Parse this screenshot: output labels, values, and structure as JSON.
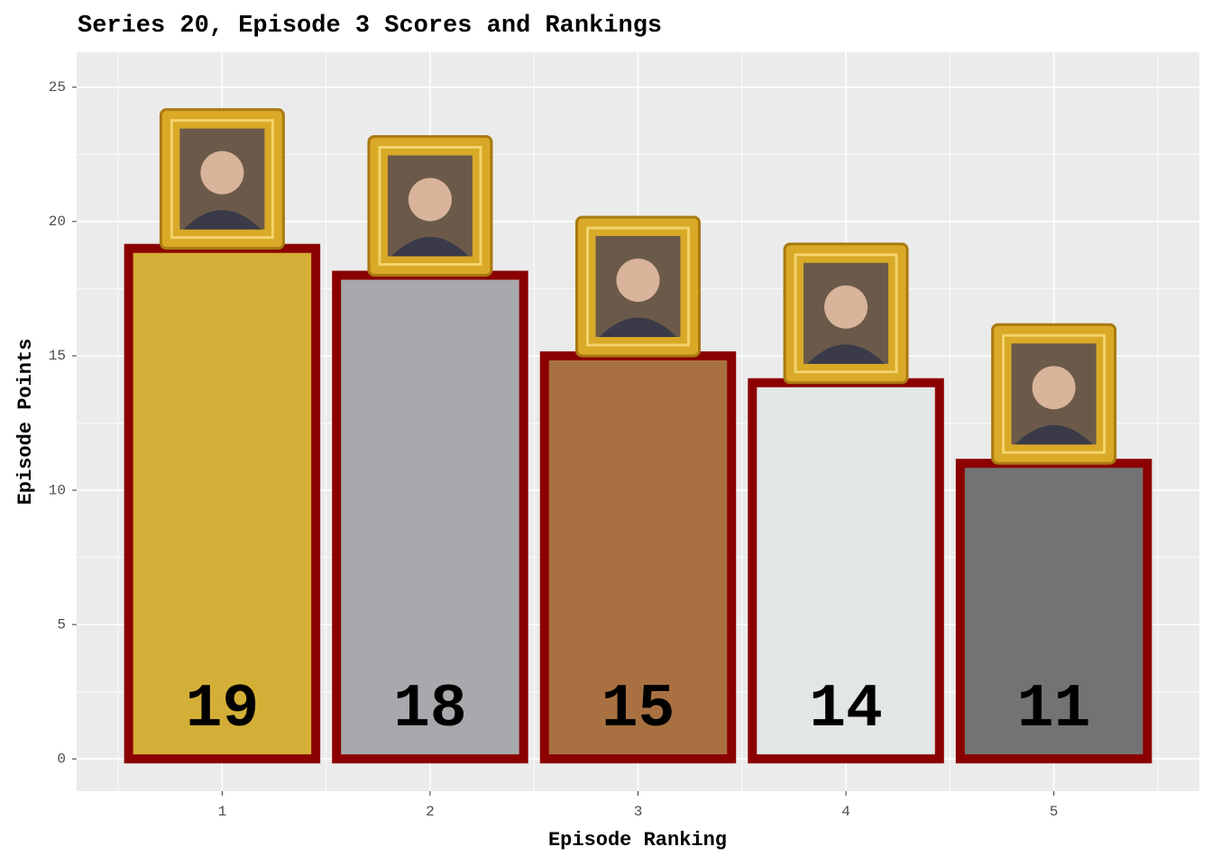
{
  "chart_data": {
    "type": "bar",
    "title": "Series 20, Episode 3 Scores and Rankings",
    "x_label": "Episode Ranking",
    "y_label": "Episode Points",
    "categories": [
      1,
      2,
      3,
      4,
      5
    ],
    "values": [
      19,
      18,
      15,
      14,
      11
    ],
    "colors": [
      "#d4af37",
      "#a8a9ad",
      "#a97142",
      "#e1e6e6",
      "#737373"
    ],
    "border_color": "#8b0000",
    "xlim": [
      0.3,
      5.7
    ],
    "xticks": [
      1,
      2,
      3,
      4,
      5
    ],
    "ylim": [
      -1.2,
      26.3
    ],
    "yticks": [
      0,
      5,
      10,
      15,
      20,
      25
    ],
    "grid": true
  }
}
